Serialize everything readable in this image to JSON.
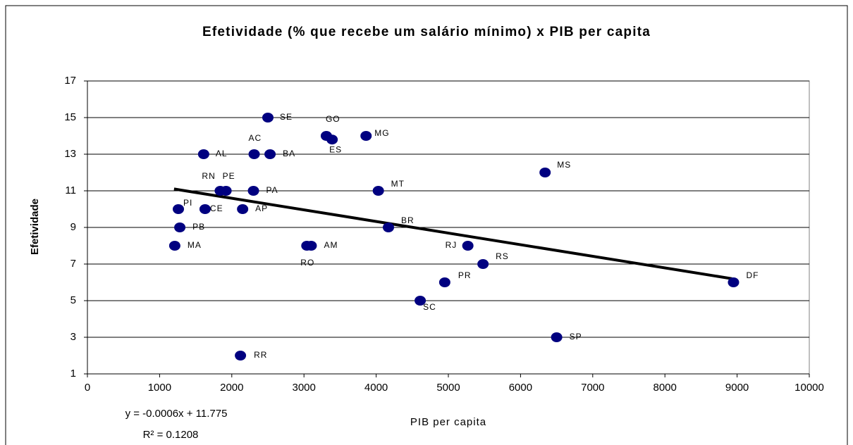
{
  "chart_data": {
    "type": "scatter",
    "title": "Efetividade (% que recebe um salário mínimo) x PIB per capita",
    "x_label": "PIB per capita",
    "y_label": "Efetividade",
    "equation": "y = -0.0006x + 11.775",
    "r_squared": "R² = 0.1208",
    "color": "#000080",
    "grid": true,
    "xlim": [
      0,
      10000
    ],
    "xticks": [
      0,
      1000,
      2000,
      3000,
      4000,
      5000,
      6000,
      7000,
      8000,
      9000,
      10000
    ],
    "ylim": [
      1,
      17
    ],
    "yticks": [
      1,
      3,
      5,
      7,
      9,
      11,
      13,
      15,
      17
    ],
    "labels": [
      "SE",
      "GO",
      "MG",
      "ES",
      "AL",
      "AC",
      "BA",
      "MS",
      "RN",
      "PE",
      "PA",
      "MT",
      "PI",
      "CE",
      "AP",
      "PB",
      "BR",
      "MA",
      "RO",
      "AM",
      "RJ",
      "RS",
      "PR",
      "SC",
      "DF",
      "SP",
      "RR"
    ],
    "x": [
      2500,
      3310,
      3860,
      3390,
      1610,
      2310,
      2530,
      6340,
      1840,
      1920,
      2300,
      4030,
      1260,
      1630,
      2150,
      1280,
      4170,
      1210,
      3040,
      3100,
      5270,
      5480,
      4950,
      4610,
      8950,
      6500,
      2120
    ],
    "values": [
      15,
      14,
      14,
      13.8,
      13,
      13,
      13,
      12,
      11,
      11,
      11,
      11,
      10,
      10,
      10,
      9,
      9,
      8,
      8,
      8,
      8,
      7,
      6,
      5,
      6,
      3,
      2
    ],
    "trendline": {
      "x": [
        1200,
        8930
      ],
      "y": [
        11.1,
        6.2
      ]
    }
  }
}
